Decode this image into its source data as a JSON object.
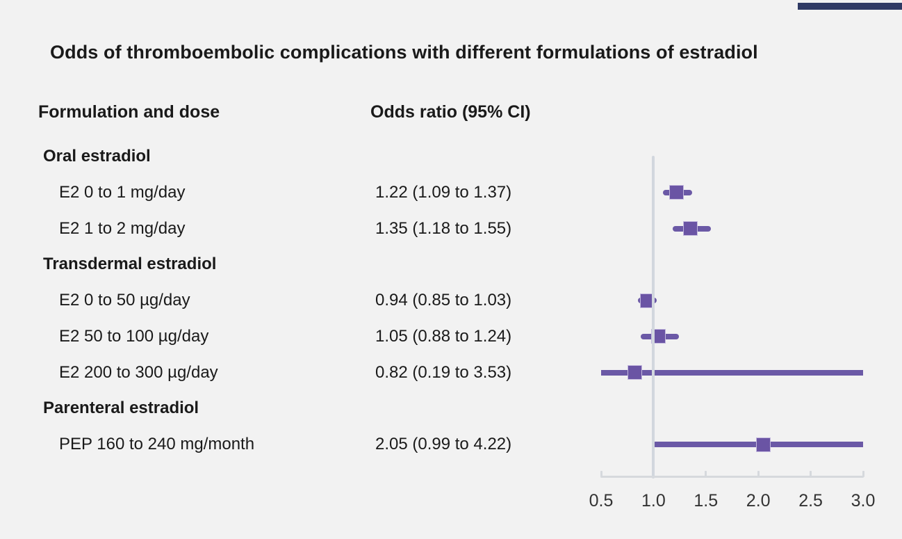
{
  "header": {
    "title": "Odds of thromboembolic complications with different formulations of estradiol",
    "col_formulation": "Formulation and dose",
    "col_odds": "Odds ratio (95% CI)"
  },
  "colors": {
    "background": "#f2f2f2",
    "text": "#1a1a1a",
    "brand_bar": "#2f3a64",
    "ci_line": "#6b59a6",
    "marker_fill": "#6a54a4",
    "marker_edge": "#c3b9de",
    "reference_line": "#d2d7de",
    "axis": "#d6d9dd",
    "tick_text": "#333333"
  },
  "chart_data": {
    "type": "forest",
    "title": "Odds of thromboembolic complications with different formulations of estradiol",
    "xlim": [
      0.5,
      3.0
    ],
    "reference_value": 1.0,
    "tick_values": [
      0.5,
      1.0,
      1.5,
      2.0,
      2.5,
      3.0
    ],
    "tick_labels": [
      "0.5",
      "1.0",
      "1.5",
      "2.0",
      "2.5",
      "3.0"
    ],
    "grid": false,
    "groups": [
      {
        "label": "Oral estradiol",
        "rows": [
          {
            "label": "E2 0 to 1 mg/day",
            "display": "1.22 (1.09 to 1.37)",
            "or": 1.22,
            "lo": 1.09,
            "hi": 1.37
          },
          {
            "label": "E2 1 to 2 mg/day",
            "display": "1.35 (1.18 to 1.55)",
            "or": 1.35,
            "lo": 1.18,
            "hi": 1.55
          }
        ]
      },
      {
        "label": "Transdermal estradiol",
        "rows": [
          {
            "label": "E2 0 to 50 µg/day",
            "display": "0.94 (0.85 to 1.03)",
            "or": 0.94,
            "lo": 0.85,
            "hi": 1.03
          },
          {
            "label": "E2 50 to 100 µg/day",
            "display": "1.05 (0.88 to 1.24)",
            "or": 1.05,
            "lo": 0.88,
            "hi": 1.24
          },
          {
            "label": "E2 200 to 300 µg/day",
            "display": "0.82 (0.19 to 3.53)",
            "or": 0.82,
            "lo": 0.19,
            "hi": 3.53
          }
        ]
      },
      {
        "label": "Parenteral estradiol",
        "rows": [
          {
            "label": "PEP 160 to 240 mg/month",
            "display": "2.05 (0.99 to 4.22)",
            "or": 2.05,
            "lo": 0.99,
            "hi": 4.22
          }
        ]
      }
    ]
  }
}
